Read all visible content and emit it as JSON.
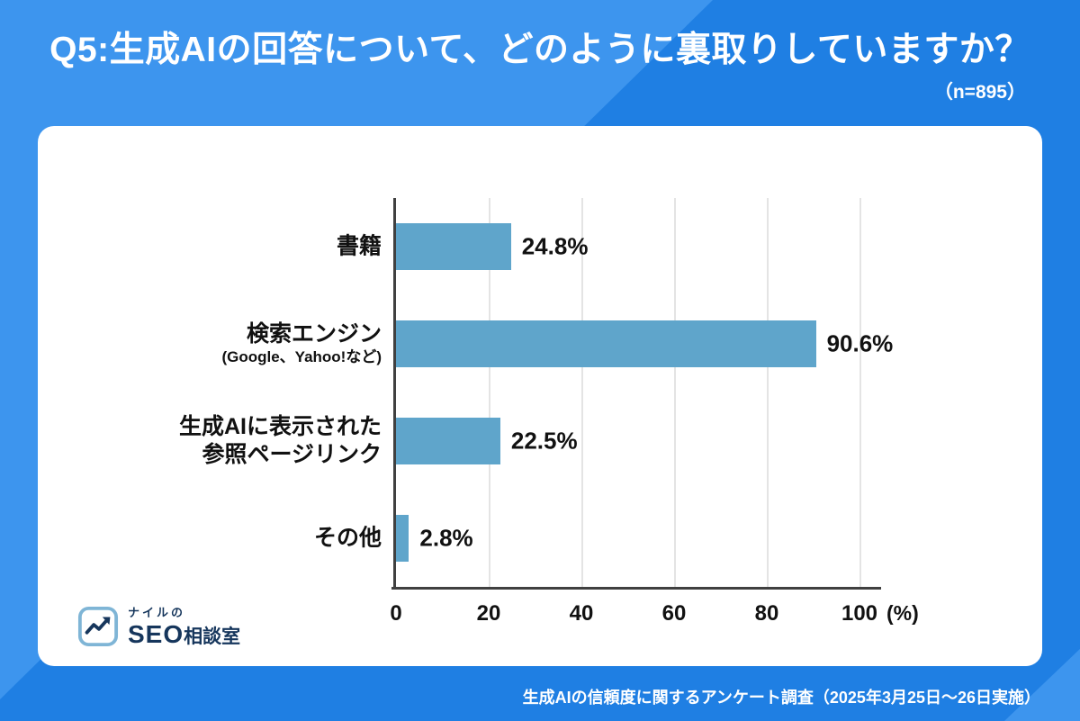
{
  "header": {
    "title": "Q5:生成AIの回答について、どのように裏取りしていますか？",
    "sample_size": "（n=895）"
  },
  "chart_data": {
    "type": "bar",
    "orientation": "horizontal",
    "categories": [
      {
        "label": "書籍",
        "sublabel": ""
      },
      {
        "label": "検索エンジン",
        "sublabel": "(Google、Yahoo!など)"
      },
      {
        "label": "生成AIに表示された\n参照ページリンク",
        "sublabel": ""
      },
      {
        "label": "その他",
        "sublabel": ""
      }
    ],
    "values": [
      24.8,
      90.6,
      22.5,
      2.8
    ],
    "value_labels": [
      "24.8%",
      "90.6%",
      "22.5%",
      "2.8%"
    ],
    "x_ticks": [
      0,
      20,
      40,
      60,
      80,
      100
    ],
    "x_unit": "(%)",
    "xlim": [
      0,
      100
    ],
    "grid": true,
    "legend": "none"
  },
  "logo": {
    "line1": "ナイルの",
    "seo": "SEO",
    "rest": "相談室"
  },
  "footer": {
    "note": "生成AIの信頼度に関するアンケート調査（2025年3月25日～26日実施）"
  },
  "colors": {
    "background": "#1f7fe3",
    "background_light": "#3d95ee",
    "bar": "#5fa5cb",
    "axis": "#404040",
    "logo_navy": "#16365c",
    "logo_lightblue": "#7fb5d6"
  }
}
